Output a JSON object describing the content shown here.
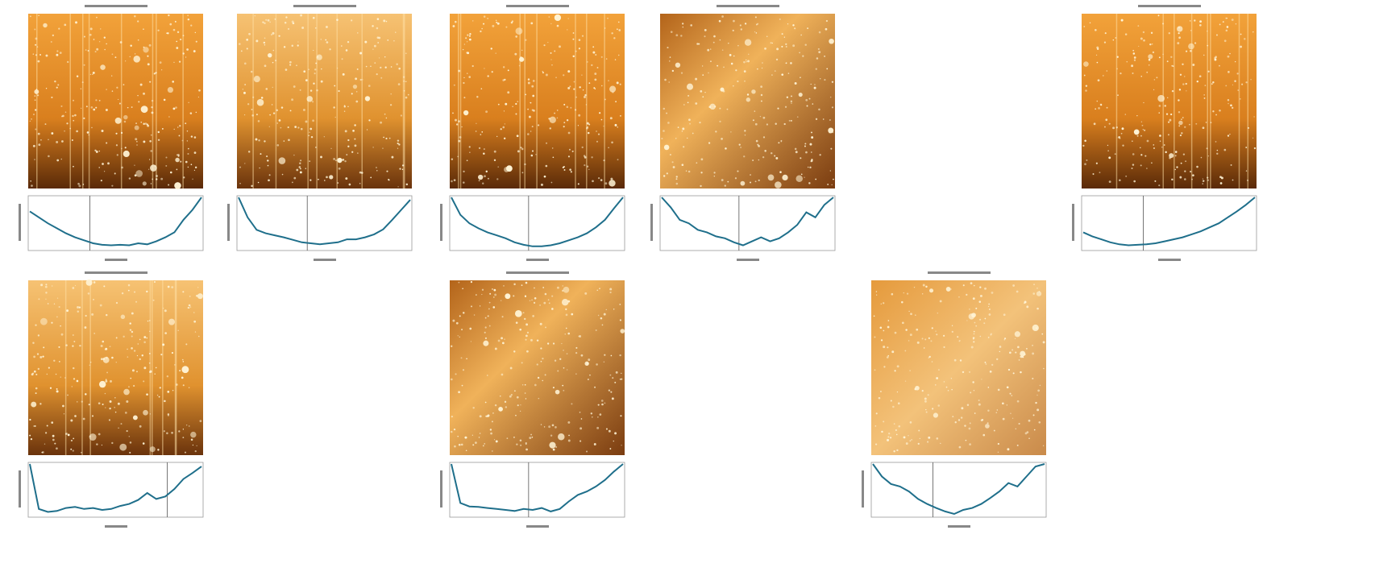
{
  "ylim": [
    0,
    1
  ],
  "xlim": [
    0,
    1
  ],
  "panels": [
    {
      "profile": [
        0.72,
        0.6,
        0.48,
        0.38,
        0.28,
        0.2,
        0.14,
        0.08,
        0.05,
        0.04,
        0.05,
        0.04,
        0.08,
        0.06,
        0.12,
        0.2,
        0.3,
        0.55,
        0.75,
        1.0
      ],
      "marker": 0.35
    },
    {
      "profile": [
        1.0,
        0.6,
        0.35,
        0.28,
        0.24,
        0.2,
        0.15,
        0.1,
        0.08,
        0.06,
        0.08,
        0.1,
        0.16,
        0.16,
        0.2,
        0.26,
        0.36,
        0.55,
        0.75,
        0.95
      ],
      "marker": 0.4
    },
    {
      "profile": [
        1.0,
        0.65,
        0.48,
        0.38,
        0.3,
        0.24,
        0.18,
        0.1,
        0.05,
        0.02,
        0.02,
        0.04,
        0.08,
        0.14,
        0.2,
        0.28,
        0.4,
        0.55,
        0.78,
        1.0
      ],
      "marker": 0.45
    },
    {
      "profile": [
        1.0,
        0.8,
        0.55,
        0.48,
        0.35,
        0.3,
        0.22,
        0.18,
        0.1,
        0.04,
        0.12,
        0.2,
        0.12,
        0.18,
        0.3,
        0.45,
        0.7,
        0.6,
        0.85,
        1.0
      ],
      "marker": 0.45
    },
    {
      "profile": [
        0.3,
        0.22,
        0.16,
        0.1,
        0.06,
        0.04,
        0.05,
        0.06,
        0.08,
        0.12,
        0.16,
        0.2,
        0.26,
        0.32,
        0.4,
        0.48,
        0.6,
        0.72,
        0.85,
        1.0
      ],
      "marker": 0.35
    },
    {
      "profile": [
        1.0,
        0.1,
        0.04,
        0.06,
        0.12,
        0.14,
        0.1,
        0.12,
        0.08,
        0.1,
        0.16,
        0.2,
        0.28,
        0.42,
        0.3,
        0.35,
        0.5,
        0.7,
        0.82,
        0.95
      ],
      "marker": 0.8
    },
    {
      "profile": [
        1.0,
        0.22,
        0.15,
        0.14,
        0.12,
        0.1,
        0.08,
        0.06,
        0.1,
        0.08,
        0.12,
        0.05,
        0.1,
        0.25,
        0.38,
        0.45,
        0.55,
        0.68,
        0.85,
        1.0
      ],
      "marker": 0.45
    },
    {
      "profile": [
        1.0,
        0.75,
        0.6,
        0.55,
        0.45,
        0.3,
        0.2,
        0.12,
        0.05,
        0.0,
        0.08,
        0.12,
        0.2,
        0.32,
        0.45,
        0.62,
        0.55,
        0.75,
        0.95,
        1.0
      ],
      "marker": 0.35
    }
  ]
}
